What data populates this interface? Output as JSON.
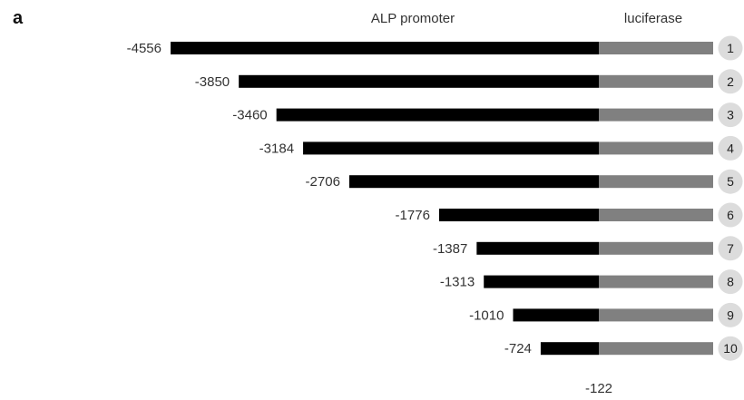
{
  "panel_label": "a",
  "headers": {
    "promoter": "ALP promoter",
    "reporter": "luciferase"
  },
  "junction_label": "-122",
  "colors": {
    "promoter": "#000000",
    "reporter": "#808080",
    "badge": "#dcdcdc",
    "text": "#222222"
  },
  "constructs": [
    {
      "id": "1",
      "start": "-4556",
      "start_bp": -4556
    },
    {
      "id": "2",
      "start": "-3850",
      "start_bp": -3850
    },
    {
      "id": "3",
      "start": "-3460",
      "start_bp": -3460
    },
    {
      "id": "4",
      "start": "-3184",
      "start_bp": -3184
    },
    {
      "id": "5",
      "start": "-2706",
      "start_bp": -2706
    },
    {
      "id": "6",
      "start": "-1776",
      "start_bp": -1776
    },
    {
      "id": "7",
      "start": "-1387",
      "start_bp": -1387
    },
    {
      "id": "8",
      "start": "-1313",
      "start_bp": -1313
    },
    {
      "id": "9",
      "start": "-1010",
      "start_bp": -1010
    },
    {
      "id": "10",
      "start": "-724",
      "start_bp": -724
    }
  ]
}
